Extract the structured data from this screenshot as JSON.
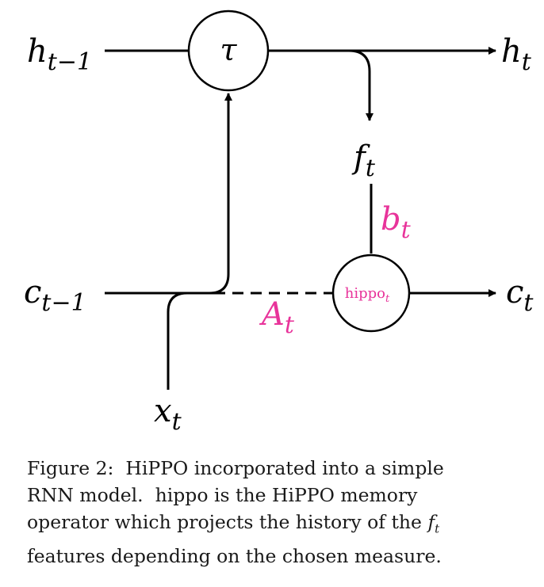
{
  "diagram": {
    "nodes": {
      "tau": "τ",
      "hippo_op": {
        "base": "hippo",
        "sub": "t"
      }
    },
    "labels": {
      "h_prev": {
        "base": "h",
        "sub": "t−1"
      },
      "h_next": {
        "base": "h",
        "sub": "t"
      },
      "c_prev": {
        "base": "c",
        "sub": "t−1"
      },
      "c_next": {
        "base": "c",
        "sub": "t"
      },
      "x_in": {
        "base": "x",
        "sub": "t"
      },
      "f_feat": {
        "base": "f",
        "sub": "t"
      },
      "b_edge": {
        "base": "b",
        "sub": "t"
      },
      "a_edge": {
        "base": "A",
        "sub": "t"
      }
    },
    "colors": {
      "ink": "#000000",
      "accent": "#e8339a"
    }
  },
  "caption": {
    "line1": "Figure 2:  HiPPO incorporated into a simple",
    "line2": "RNN model.  hippo is the HiPPO memory",
    "line3_prefix": "operator which projects the history of the ",
    "line3_math_base": "f",
    "line3_math_sub": "t",
    "line4": "features depending on the chosen measure."
  }
}
